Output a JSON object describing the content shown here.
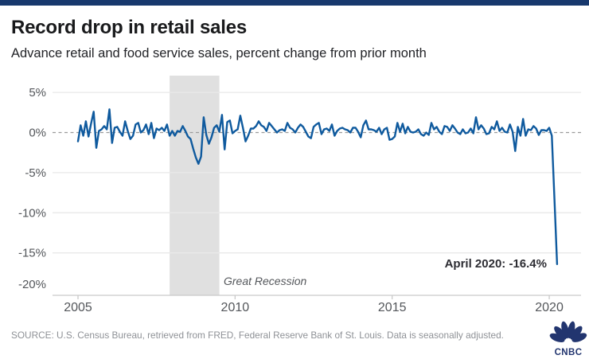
{
  "topbar": {
    "color": "#17386d"
  },
  "header": {
    "title": "Record drop in retail sales",
    "subtitle": "Advance retail and food service sales, percent change from prior month"
  },
  "chart_data": {
    "type": "line",
    "title": "Record drop in retail sales",
    "subtitle": "Advance retail and food service sales, percent change from prior month",
    "xlabel": "",
    "ylabel": "percent change from prior month",
    "x_axis": {
      "tick_labels": [
        "2005",
        "2010",
        "2015",
        "2020"
      ],
      "tick_years": [
        2005,
        2010,
        2015,
        2020
      ],
      "range_start": "2005-01",
      "range_end": "2020-04"
    },
    "y_axis": {
      "tick_labels": [
        "5%",
        "0%",
        "-5%",
        "-10%",
        "-15%",
        "-20%"
      ],
      "tick_values": [
        5,
        0,
        -5,
        -10,
        -15,
        -20
      ],
      "ylim": [
        -20.3,
        7
      ]
    },
    "grid": "horizontal",
    "zero_line": "dashed",
    "legend": "none",
    "series": [
      {
        "name": "Advance retail and food service sales, percent change from prior month",
        "frequency": "monthly",
        "start": "2005-01",
        "values": [
          -1.1,
          0.9,
          -0.4,
          1.4,
          -0.5,
          1.1,
          2.6,
          -1.9,
          0.2,
          0.4,
          0.8,
          0.4,
          2.9,
          -1.3,
          0.6,
          0.7,
          0.1,
          -0.4,
          1.4,
          0.2,
          -0.8,
          -0.4,
          1.0,
          1.2,
          0.0,
          0.3,
          1.0,
          -0.2,
          1.2,
          -0.7,
          0.5,
          0.3,
          0.6,
          0.2,
          1.0,
          -0.4,
          0.2,
          -0.4,
          0.2,
          0.1,
          0.8,
          0.2,
          -0.5,
          -0.8,
          -2.0,
          -3.1,
          -3.9,
          -3.0,
          1.9,
          -0.3,
          -1.4,
          -0.6,
          0.6,
          0.9,
          0.1,
          2.2,
          -2.1,
          1.3,
          1.5,
          -0.1,
          0.2,
          0.4,
          2.1,
          0.6,
          -1.1,
          -0.4,
          0.5,
          0.5,
          0.8,
          1.4,
          0.9,
          0.7,
          0.2,
          1.2,
          0.8,
          0.4,
          0.0,
          0.3,
          0.4,
          0.2,
          1.2,
          0.6,
          0.4,
          0.0,
          0.6,
          1.0,
          0.7,
          0.1,
          -0.5,
          -0.7,
          0.7,
          1.0,
          1.2,
          -0.2,
          0.4,
          0.5,
          0.2,
          1.0,
          -0.4,
          0.2,
          0.5,
          0.6,
          0.4,
          0.3,
          0.0,
          0.6,
          0.6,
          0.1,
          -0.6,
          0.9,
          1.5,
          0.4,
          0.4,
          0.3,
          0.1,
          0.6,
          -0.2,
          0.4,
          0.6,
          -0.9,
          -0.8,
          -0.5,
          1.2,
          0.1,
          1.1,
          -0.1,
          0.7,
          0.1,
          0.0,
          0.1,
          0.4,
          -0.2,
          -0.4,
          0.0,
          -0.3,
          1.2,
          0.4,
          0.7,
          0.1,
          -0.2,
          0.8,
          0.7,
          0.2,
          0.9,
          0.5,
          0.0,
          -0.2,
          0.4,
          -0.1,
          0.0,
          0.5,
          -0.1,
          1.9,
          0.4,
          0.9,
          0.5,
          -0.2,
          -0.1,
          0.7,
          0.4,
          1.4,
          0.2,
          0.6,
          0.1,
          0.0,
          1.0,
          0.1,
          -2.3,
          0.7,
          -0.4,
          1.7,
          -0.4,
          0.4,
          0.3,
          0.8,
          0.5,
          -0.3,
          0.3,
          0.3,
          0.2,
          0.6,
          -0.4,
          -8.3,
          -16.4
        ]
      }
    ],
    "recession_band": {
      "label": "Great Recession",
      "start": "2007-12",
      "end": "2009-06"
    },
    "annotation": {
      "text": "April 2020: -16.4%",
      "x": "2020-04",
      "y": -16.4
    },
    "colors": {
      "line": "#0f5a9e",
      "band": "#e0e0e0",
      "grid": "#e9e9e9",
      "axis": "#c9c9c9",
      "zero_dash": "#9b9b9b",
      "tick_label": "#53565a",
      "annotation": "#2d2d33",
      "recession_label": "#53565a"
    }
  },
  "footer": {
    "source": "SOURCE: U.S. Census Bureau, retrieved from FRED, Federal Reserve Bank of St. Louis. Data is seasonally adjusted.",
    "logo_text": "CNBC",
    "logo_color": "#22356f"
  }
}
